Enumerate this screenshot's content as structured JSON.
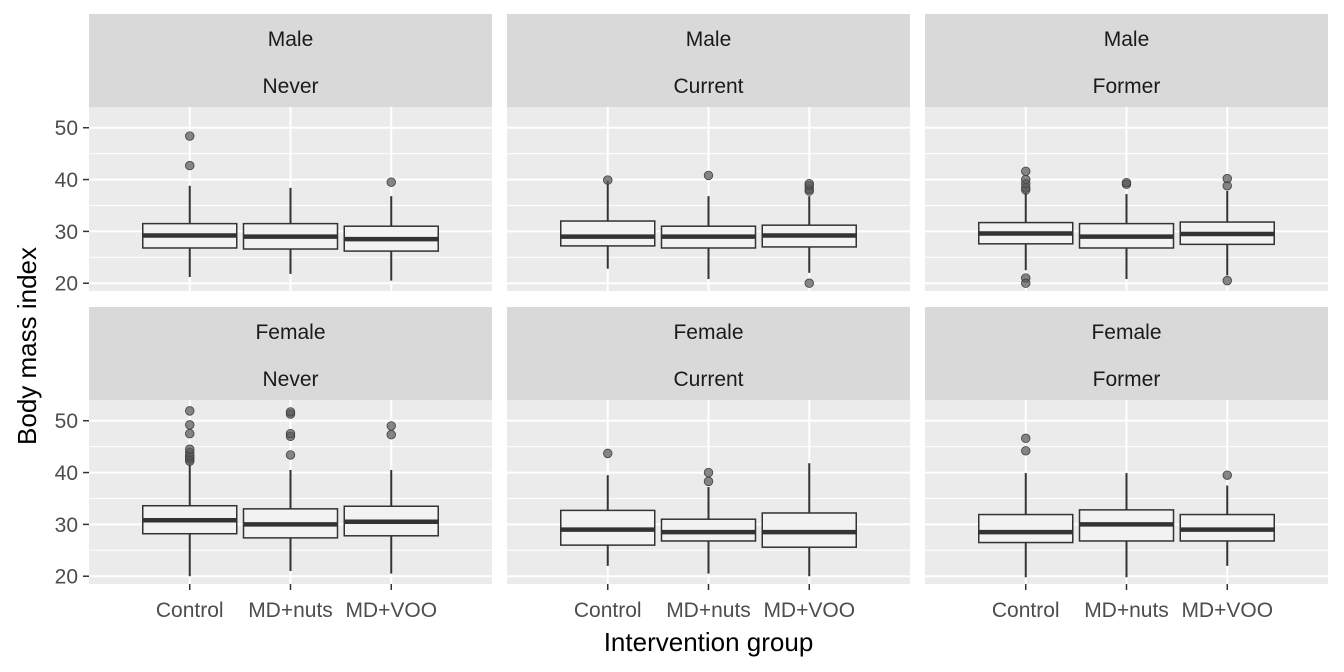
{
  "colors": {
    "panel_bg": "#EBEBEB",
    "strip_bg": "#D9D9D9",
    "grid_major": "#FFFFFF",
    "box_fill": "#F2F2F2",
    "box_line": "#333333",
    "outlier": "#595959"
  },
  "chart_data": {
    "type": "boxplot",
    "xlabel": "Intervention group",
    "ylabel": "Body mass index",
    "categories": [
      "Control",
      "MD+nuts",
      "MD+VOO"
    ],
    "y_ticks": [
      20,
      30,
      40,
      50
    ],
    "ylim": [
      18.5,
      54
    ],
    "grid": true,
    "panels": [
      {
        "sex": "Male",
        "smoking": "Never",
        "boxes": [
          {
            "group": "Control",
            "min": 21.2,
            "q1": 26.8,
            "median": 29.2,
            "q3": 31.5,
            "max": 38.8,
            "outliers": [
              42.7,
              48.4
            ]
          },
          {
            "group": "MD+nuts",
            "min": 21.8,
            "q1": 26.6,
            "median": 29.0,
            "q3": 31.5,
            "max": 38.4,
            "outliers": []
          },
          {
            "group": "MD+VOO",
            "min": 20.5,
            "q1": 26.2,
            "median": 28.5,
            "q3": 31.0,
            "max": 36.8,
            "outliers": [
              39.5
            ]
          }
        ]
      },
      {
        "sex": "Male",
        "smoking": "Current",
        "boxes": [
          {
            "group": "Control",
            "min": 22.8,
            "q1": 27.2,
            "median": 29.0,
            "q3": 32.0,
            "max": 39.8,
            "outliers": [
              39.9
            ]
          },
          {
            "group": "MD+nuts",
            "min": 20.8,
            "q1": 26.8,
            "median": 29.0,
            "q3": 31.0,
            "max": 36.8,
            "outliers": [
              40.8
            ]
          },
          {
            "group": "MD+VOO",
            "min": 22.0,
            "q1": 27.0,
            "median": 29.2,
            "q3": 31.2,
            "max": 36.8,
            "outliers": [
              37.8,
              38.2,
              38.8,
              39.2,
              20.0
            ]
          }
        ]
      },
      {
        "sex": "Male",
        "smoking": "Former",
        "boxes": [
          {
            "group": "Control",
            "min": 22.5,
            "q1": 27.6,
            "median": 29.6,
            "q3": 31.7,
            "max": 37.5,
            "outliers": [
              38.0,
              38.4,
              39.2,
              40.0,
              41.6,
              21.0,
              20.0
            ]
          },
          {
            "group": "MD+nuts",
            "min": 20.8,
            "q1": 26.8,
            "median": 29.0,
            "q3": 31.5,
            "max": 37.2,
            "outliers": [
              39.1,
              39.4
            ]
          },
          {
            "group": "MD+VOO",
            "min": 21.5,
            "q1": 27.5,
            "median": 29.5,
            "q3": 31.8,
            "max": 37.8,
            "outliers": [
              38.8,
              40.2,
              20.5
            ]
          }
        ]
      },
      {
        "sex": "Female",
        "smoking": "Never",
        "boxes": [
          {
            "group": "Control",
            "min": 20.0,
            "q1": 28.2,
            "median": 30.8,
            "q3": 33.6,
            "max": 41.6,
            "outliers": [
              42.2,
              42.6,
              43.0,
              43.4,
              43.9,
              44.5,
              47.5,
              49.2,
              51.9
            ]
          },
          {
            "group": "MD+nuts",
            "min": 21.0,
            "q1": 27.4,
            "median": 30.0,
            "q3": 33.0,
            "max": 40.5,
            "outliers": [
              43.4,
              47.0,
              47.5,
              51.3,
              51.7
            ]
          },
          {
            "group": "MD+VOO",
            "min": 20.5,
            "q1": 27.8,
            "median": 30.5,
            "q3": 33.5,
            "max": 40.5,
            "outliers": [
              47.3,
              49.0
            ]
          }
        ]
      },
      {
        "sex": "Female",
        "smoking": "Current",
        "boxes": [
          {
            "group": "Control",
            "min": 22.0,
            "q1": 26.0,
            "median": 29.0,
            "q3": 32.7,
            "max": 39.5,
            "outliers": [
              43.7
            ]
          },
          {
            "group": "MD+nuts",
            "min": 20.5,
            "q1": 26.8,
            "median": 28.5,
            "q3": 31.0,
            "max": 37.2,
            "outliers": [
              38.3,
              40.0
            ]
          },
          {
            "group": "MD+VOO",
            "min": 20.0,
            "q1": 25.6,
            "median": 28.5,
            "q3": 32.2,
            "max": 41.8,
            "outliers": []
          }
        ]
      },
      {
        "sex": "Female",
        "smoking": "Former",
        "boxes": [
          {
            "group": "Control",
            "min": 19.8,
            "q1": 26.5,
            "median": 28.5,
            "q3": 31.9,
            "max": 39.9,
            "outliers": [
              44.2,
              46.6
            ]
          },
          {
            "group": "MD+nuts",
            "min": 19.8,
            "q1": 26.8,
            "median": 30.0,
            "q3": 32.8,
            "max": 39.9,
            "outliers": []
          },
          {
            "group": "MD+VOO",
            "min": 22.0,
            "q1": 26.8,
            "median": 29.0,
            "q3": 31.9,
            "max": 37.5,
            "outliers": [
              39.5
            ]
          }
        ]
      }
    ]
  }
}
